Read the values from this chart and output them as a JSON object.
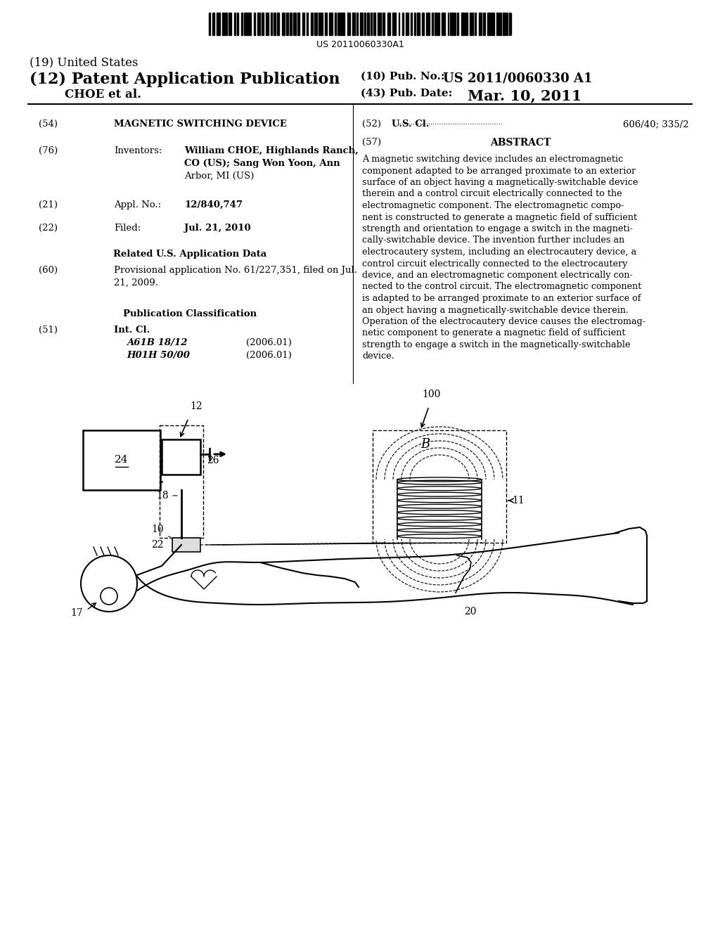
{
  "bg_color": "#ffffff",
  "barcode_text": "US 20110060330A1",
  "title_19": "(19) United States",
  "title_12": "(12) Patent Application Publication",
  "pub_no_label": "(10) Pub. No.:",
  "pub_no_val": "US 2011/0060330 A1",
  "inventor_name": "CHOE et al.",
  "pub_date_label": "(43) Pub. Date:",
  "pub_date_val": "Mar. 10, 2011",
  "field54_label": "(54)",
  "field54_title": "MAGNETIC SWITCHING DEVICE",
  "field76_label": "(76)",
  "field76_key": "Inventors:",
  "field76_val1": "William CHOE, Highlands Ranch,",
  "field76_val2": "CO (US); Sang Won Yoon, Ann",
  "field76_val3": "Arbor, MI (US)",
  "field21_label": "(21)",
  "field21_key": "Appl. No.:",
  "field21_val": "12/840,747",
  "field22_label": "(22)",
  "field22_key": "Filed:",
  "field22_val": "Jul. 21, 2010",
  "related_title": "Related U.S. Application Data",
  "field60_label": "(60)",
  "field60_val1": "Provisional application No. 61/227,351, filed on Jul.",
  "field60_val2": "21, 2009.",
  "pub_class_title": "Publication Classification",
  "field51_label": "(51)",
  "field51_key": "Int. Cl.",
  "field51_val1": "A61B 18/12",
  "field51_val1b": "(2006.01)",
  "field51_val2": "H01H 50/00",
  "field51_val2b": "(2006.01)",
  "field52_label": "(52)",
  "field52_key": "U.S. Cl.",
  "field52_dots": "................................................",
  "field52_val": "606/40; 335/2",
  "field57_label": "(57)",
  "field57_title": "ABSTRACT",
  "abstract_lines": [
    "A magnetic switching device includes an electromagnetic",
    "component adapted to be arranged proximate to an exterior",
    "surface of an object having a magnetically-switchable device",
    "therein and a control circuit electrically connected to the",
    "electromagnetic component. The electromagnetic compo-",
    "nent is constructed to generate a magnetic field of sufficient",
    "strength and orientation to engage a switch in the magneti-",
    "cally-switchable device. The invention further includes an",
    "electrocautery system, including an electrocautery device, a",
    "control circuit electrically connected to the electrocautery",
    "device, and an electromagnetic component electrically con-",
    "nected to the control circuit. The electromagnetic component",
    "is adapted to be arranged proximate to an exterior surface of",
    "an object having a magnetically-switchable device therein.",
    "Operation of the electrocautery device causes the electromag-",
    "netic component to generate a magnetic field of sufficient",
    "strength to engage a switch in the magnetically-switchable",
    "device."
  ]
}
